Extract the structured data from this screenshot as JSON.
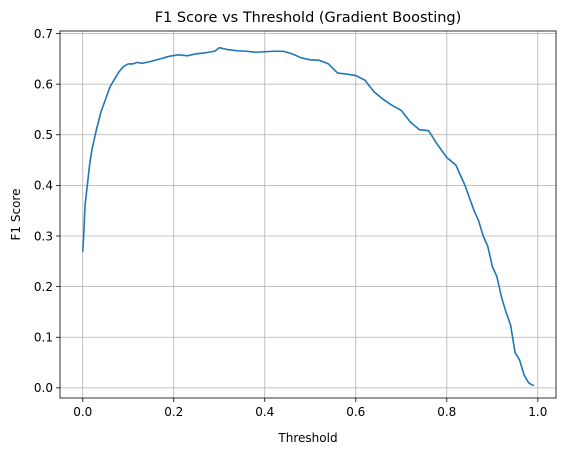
{
  "chart_data": {
    "type": "line",
    "title": "F1 Score vs Threshold (Gradient Boosting)",
    "xlabel": "Threshold",
    "ylabel": "F1 Score",
    "xlim": [
      -0.05,
      1.04
    ],
    "ylim": [
      -0.02,
      0.705
    ],
    "xticks": [
      0.0,
      0.2,
      0.4,
      0.6,
      0.8,
      1.0
    ],
    "xtick_labels": [
      "0.0",
      "0.2",
      "0.4",
      "0.6",
      "0.8",
      "1.0"
    ],
    "yticks": [
      0.0,
      0.1,
      0.2,
      0.3,
      0.4,
      0.5,
      0.6,
      0.7
    ],
    "ytick_labels": [
      "0.0",
      "0.1",
      "0.2",
      "0.3",
      "0.4",
      "0.5",
      "0.6",
      "0.7"
    ],
    "grid": true,
    "line_color": "#1f77b4",
    "series": [
      {
        "x": [
          0.0,
          0.002,
          0.005,
          0.01,
          0.015,
          0.02,
          0.025,
          0.03,
          0.04,
          0.05,
          0.06,
          0.07,
          0.08,
          0.09,
          0.1,
          0.11,
          0.12,
          0.13,
          0.15,
          0.17,
          0.19,
          0.21,
          0.23,
          0.25,
          0.27,
          0.29,
          0.3,
          0.32,
          0.34,
          0.36,
          0.38,
          0.4,
          0.42,
          0.44,
          0.46,
          0.48,
          0.5,
          0.52,
          0.54,
          0.56,
          0.58,
          0.6,
          0.62,
          0.64,
          0.66,
          0.68,
          0.7,
          0.72,
          0.74,
          0.76,
          0.78,
          0.8,
          0.82,
          0.84,
          0.86,
          0.87,
          0.88,
          0.89,
          0.9,
          0.91,
          0.92,
          0.93,
          0.94,
          0.95,
          0.96,
          0.965,
          0.97,
          0.98,
          0.985,
          0.99
        ],
        "y": [
          0.27,
          0.3,
          0.36,
          0.4,
          0.44,
          0.47,
          0.49,
          0.51,
          0.545,
          0.57,
          0.595,
          0.61,
          0.625,
          0.635,
          0.64,
          0.64,
          0.643,
          0.641,
          0.645,
          0.65,
          0.655,
          0.658,
          0.656,
          0.66,
          0.662,
          0.665,
          0.672,
          0.668,
          0.666,
          0.665,
          0.663,
          0.664,
          0.665,
          0.665,
          0.66,
          0.652,
          0.648,
          0.647,
          0.64,
          0.622,
          0.62,
          0.617,
          0.608,
          0.585,
          0.57,
          0.558,
          0.548,
          0.525,
          0.51,
          0.508,
          0.48,
          0.455,
          0.44,
          0.4,
          0.35,
          0.33,
          0.3,
          0.28,
          0.24,
          0.22,
          0.18,
          0.15,
          0.125,
          0.07,
          0.055,
          0.04,
          0.025,
          0.01,
          0.007,
          0.005
        ]
      }
    ]
  }
}
